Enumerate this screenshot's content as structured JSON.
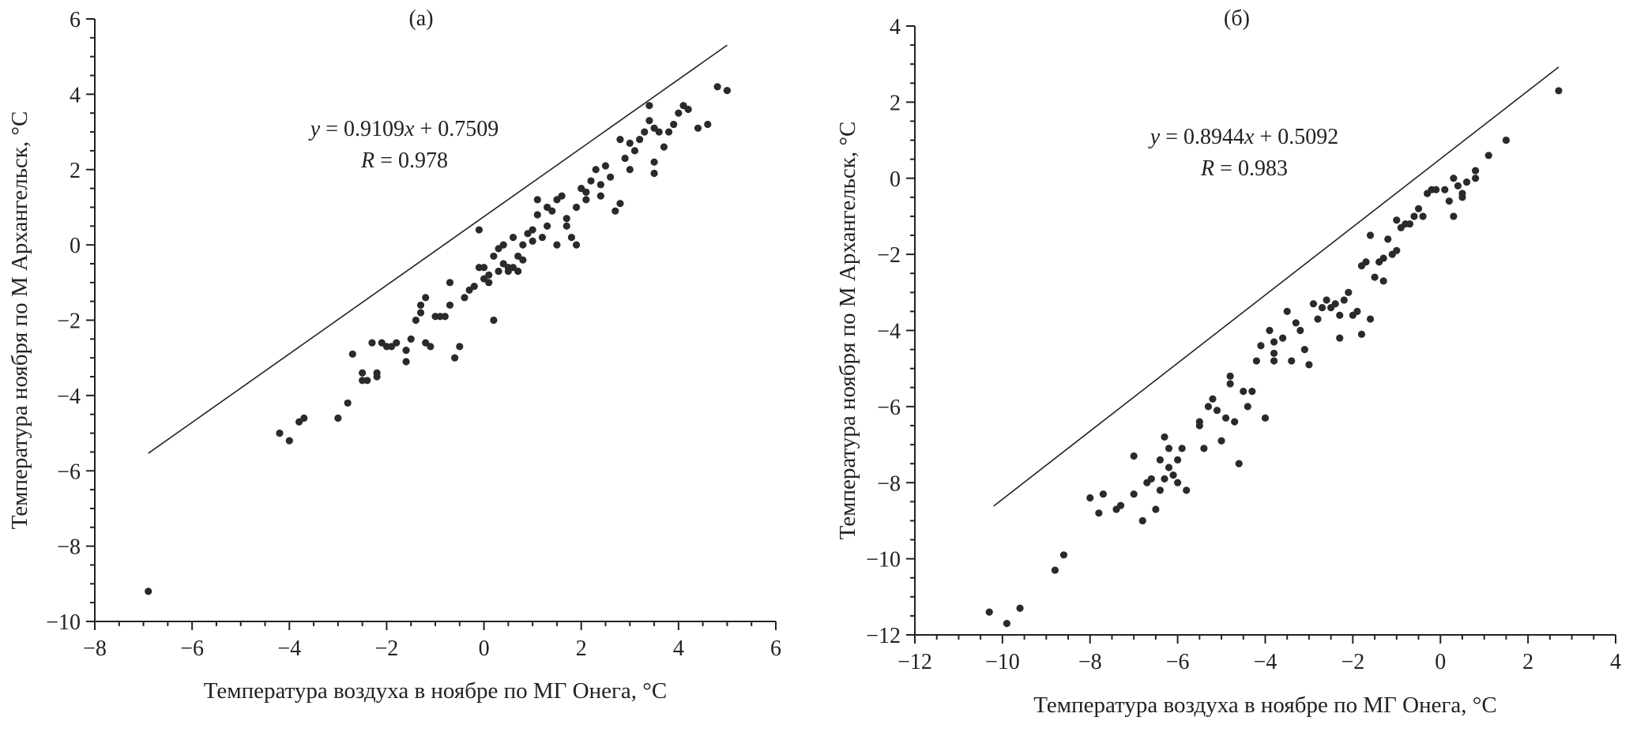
{
  "chart_data": [
    {
      "type": "scatter",
      "panel_label": "(а)",
      "xlabel": "Температура воздуха в ноябре по МГ Онега, °С",
      "ylabel": "Температура ноября по М Архангельск, °С",
      "xlim": [
        -8,
        6
      ],
      "ylim": [
        -10,
        6
      ],
      "xticks": [
        -8,
        -6,
        -4,
        -2,
        0,
        2,
        4,
        6
      ],
      "yticks": [
        -10,
        -8,
        -6,
        -4,
        -2,
        0,
        2,
        4,
        6
      ],
      "grid": false,
      "equation": "y = 0.9109x + 0.7509",
      "r_text": "R = 0.978",
      "regression": {
        "slope": 0.9109,
        "intercept": 0.7509,
        "x_range": [
          -6.9,
          5.0
        ]
      },
      "points": [
        [
          -6.9,
          -9.2
        ],
        [
          -4.2,
          -5.0
        ],
        [
          -4.0,
          -5.2
        ],
        [
          -3.8,
          -4.7
        ],
        [
          -3.7,
          -4.6
        ],
        [
          -3.0,
          -4.6
        ],
        [
          -2.8,
          -4.2
        ],
        [
          -2.7,
          -2.9
        ],
        [
          -2.5,
          -3.4
        ],
        [
          -2.5,
          -3.6
        ],
        [
          -2.4,
          -3.6
        ],
        [
          -2.3,
          -2.6
        ],
        [
          -2.2,
          -3.5
        ],
        [
          -2.2,
          -3.4
        ],
        [
          -2.1,
          -2.6
        ],
        [
          -2.0,
          -2.7
        ],
        [
          -1.9,
          -2.7
        ],
        [
          -1.8,
          -2.6
        ],
        [
          -1.6,
          -2.8
        ],
        [
          -1.6,
          -3.1
        ],
        [
          -1.5,
          -2.5
        ],
        [
          -1.4,
          -2.0
        ],
        [
          -1.3,
          -1.8
        ],
        [
          -1.3,
          -1.6
        ],
        [
          -1.2,
          -1.4
        ],
        [
          -1.2,
          -2.6
        ],
        [
          -1.1,
          -2.7
        ],
        [
          -1.0,
          -1.9
        ],
        [
          -0.9,
          -1.9
        ],
        [
          -0.8,
          -1.9
        ],
        [
          -0.7,
          -1.0
        ],
        [
          -0.7,
          -1.6
        ],
        [
          -0.6,
          -3.0
        ],
        [
          -0.5,
          -2.7
        ],
        [
          -0.4,
          -1.4
        ],
        [
          -0.3,
          -1.2
        ],
        [
          -0.2,
          -1.1
        ],
        [
          -0.1,
          -0.6
        ],
        [
          -0.1,
          0.4
        ],
        [
          0.0,
          -0.9
        ],
        [
          0.0,
          -0.6
        ],
        [
          0.1,
          -1.0
        ],
        [
          0.1,
          -0.8
        ],
        [
          0.2,
          -2.0
        ],
        [
          0.2,
          -0.3
        ],
        [
          0.3,
          -0.7
        ],
        [
          0.3,
          -0.1
        ],
        [
          0.4,
          -0.5
        ],
        [
          0.4,
          0.0
        ],
        [
          0.5,
          -0.6
        ],
        [
          0.5,
          -0.7
        ],
        [
          0.6,
          -0.6
        ],
        [
          0.6,
          0.2
        ],
        [
          0.7,
          -0.3
        ],
        [
          0.7,
          -0.7
        ],
        [
          0.8,
          0.0
        ],
        [
          0.8,
          -0.4
        ],
        [
          0.9,
          0.3
        ],
        [
          1.0,
          0.1
        ],
        [
          1.0,
          0.4
        ],
        [
          1.1,
          0.8
        ],
        [
          1.1,
          1.2
        ],
        [
          1.2,
          0.2
        ],
        [
          1.3,
          0.5
        ],
        [
          1.3,
          1.0
        ],
        [
          1.4,
          0.9
        ],
        [
          1.5,
          1.2
        ],
        [
          1.5,
          0.0
        ],
        [
          1.6,
          1.3
        ],
        [
          1.7,
          0.7
        ],
        [
          1.7,
          0.5
        ],
        [
          1.8,
          0.2
        ],
        [
          1.9,
          1.0
        ],
        [
          1.9,
          0.0
        ],
        [
          2.0,
          1.5
        ],
        [
          2.1,
          1.2
        ],
        [
          2.1,
          1.4
        ],
        [
          2.2,
          1.7
        ],
        [
          2.3,
          2.0
        ],
        [
          2.4,
          1.6
        ],
        [
          2.4,
          1.3
        ],
        [
          2.5,
          2.1
        ],
        [
          2.6,
          1.8
        ],
        [
          2.7,
          0.9
        ],
        [
          2.8,
          1.1
        ],
        [
          2.8,
          2.8
        ],
        [
          2.9,
          2.3
        ],
        [
          3.0,
          2.0
        ],
        [
          3.0,
          2.7
        ],
        [
          3.1,
          2.5
        ],
        [
          3.2,
          2.8
        ],
        [
          3.3,
          3.0
        ],
        [
          3.4,
          3.3
        ],
        [
          3.4,
          3.7
        ],
        [
          3.5,
          2.2
        ],
        [
          3.5,
          1.9
        ],
        [
          3.5,
          3.1
        ],
        [
          3.6,
          3.0
        ],
        [
          3.7,
          2.6
        ],
        [
          3.8,
          3.0
        ],
        [
          3.9,
          3.2
        ],
        [
          4.0,
          3.5
        ],
        [
          4.1,
          3.7
        ],
        [
          4.2,
          3.6
        ],
        [
          4.4,
          3.1
        ],
        [
          4.6,
          3.2
        ],
        [
          4.8,
          4.2
        ],
        [
          5.0,
          4.1
        ]
      ]
    },
    {
      "type": "scatter",
      "panel_label": "(б)",
      "xlabel": "Температура воздуха в ноябре по МГ Онега, °С",
      "ylabel": "Температура ноября по М Архангельск, °С",
      "xlim": [
        -12,
        4
      ],
      "ylim": [
        -12,
        4
      ],
      "xticks": [
        -12,
        -10,
        -8,
        -6,
        -4,
        -2,
        0,
        2,
        4
      ],
      "yticks": [
        -12,
        -10,
        -8,
        -6,
        -4,
        -2,
        0,
        2,
        4
      ],
      "grid": false,
      "equation": "y = 0.8944x + 0.5092",
      "r_text": "R = 0.983",
      "regression": {
        "slope": 0.8944,
        "intercept": 0.5092,
        "x_range": [
          -10.2,
          2.7
        ]
      },
      "points": [
        [
          -10.3,
          -11.4
        ],
        [
          -9.9,
          -11.7
        ],
        [
          -9.6,
          -11.3
        ],
        [
          -8.8,
          -10.3
        ],
        [
          -8.6,
          -9.9
        ],
        [
          -8.0,
          -8.4
        ],
        [
          -7.8,
          -8.8
        ],
        [
          -7.7,
          -8.3
        ],
        [
          -7.4,
          -8.7
        ],
        [
          -7.3,
          -8.6
        ],
        [
          -7.0,
          -8.3
        ],
        [
          -7.0,
          -7.3
        ],
        [
          -6.8,
          -9.0
        ],
        [
          -6.7,
          -8.0
        ],
        [
          -6.6,
          -7.9
        ],
        [
          -6.5,
          -8.7
        ],
        [
          -6.4,
          -7.4
        ],
        [
          -6.4,
          -8.2
        ],
        [
          -6.3,
          -6.8
        ],
        [
          -6.3,
          -7.9
        ],
        [
          -6.2,
          -7.1
        ],
        [
          -6.2,
          -7.6
        ],
        [
          -6.1,
          -7.8
        ],
        [
          -6.0,
          -8.0
        ],
        [
          -6.0,
          -7.4
        ],
        [
          -5.9,
          -7.1
        ],
        [
          -5.8,
          -8.2
        ],
        [
          -5.5,
          -6.4
        ],
        [
          -5.5,
          -6.5
        ],
        [
          -5.4,
          -7.1
        ],
        [
          -5.3,
          -6.0
        ],
        [
          -5.2,
          -5.8
        ],
        [
          -5.1,
          -6.1
        ],
        [
          -5.0,
          -6.9
        ],
        [
          -4.9,
          -6.3
        ],
        [
          -4.8,
          -5.4
        ],
        [
          -4.8,
          -5.2
        ],
        [
          -4.7,
          -6.4
        ],
        [
          -4.6,
          -7.5
        ],
        [
          -4.5,
          -5.6
        ],
        [
          -4.4,
          -6.0
        ],
        [
          -4.3,
          -5.6
        ],
        [
          -4.2,
          -4.8
        ],
        [
          -4.1,
          -4.4
        ],
        [
          -4.0,
          -6.3
        ],
        [
          -3.9,
          -4.0
        ],
        [
          -3.8,
          -4.3
        ],
        [
          -3.8,
          -4.6
        ],
        [
          -3.8,
          -4.8
        ],
        [
          -3.6,
          -4.2
        ],
        [
          -3.5,
          -3.5
        ],
        [
          -3.4,
          -4.8
        ],
        [
          -3.3,
          -3.8
        ],
        [
          -3.2,
          -4.0
        ],
        [
          -3.1,
          -4.5
        ],
        [
          -3.0,
          -4.9
        ],
        [
          -2.9,
          -3.3
        ],
        [
          -2.8,
          -3.7
        ],
        [
          -2.7,
          -3.4
        ],
        [
          -2.6,
          -3.2
        ],
        [
          -2.5,
          -3.4
        ],
        [
          -2.4,
          -3.3
        ],
        [
          -2.3,
          -4.2
        ],
        [
          -2.3,
          -3.6
        ],
        [
          -2.2,
          -3.2
        ],
        [
          -2.1,
          -3.0
        ],
        [
          -2.0,
          -3.6
        ],
        [
          -1.9,
          -3.5
        ],
        [
          -1.8,
          -4.1
        ],
        [
          -1.8,
          -2.3
        ],
        [
          -1.7,
          -2.2
        ],
        [
          -1.6,
          -3.7
        ],
        [
          -1.6,
          -1.5
        ],
        [
          -1.5,
          -2.6
        ],
        [
          -1.4,
          -2.2
        ],
        [
          -1.3,
          -2.7
        ],
        [
          -1.3,
          -2.1
        ],
        [
          -1.2,
          -1.6
        ],
        [
          -1.1,
          -2.0
        ],
        [
          -1.0,
          -1.9
        ],
        [
          -1.0,
          -1.1
        ],
        [
          -0.9,
          -1.3
        ],
        [
          -0.8,
          -1.2
        ],
        [
          -0.7,
          -1.2
        ],
        [
          -0.6,
          -1.0
        ],
        [
          -0.5,
          -0.8
        ],
        [
          -0.4,
          -1.0
        ],
        [
          -0.3,
          -0.4
        ],
        [
          -0.2,
          -0.3
        ],
        [
          -0.1,
          -0.3
        ],
        [
          0.1,
          -0.3
        ],
        [
          0.2,
          -0.6
        ],
        [
          0.3,
          0.0
        ],
        [
          0.3,
          -1.0
        ],
        [
          0.4,
          -0.2
        ],
        [
          0.5,
          -0.4
        ],
        [
          0.5,
          -0.5
        ],
        [
          0.6,
          -0.1
        ],
        [
          0.8,
          0.0
        ],
        [
          0.8,
          0.2
        ],
        [
          1.1,
          0.6
        ],
        [
          1.5,
          1.0
        ],
        [
          2.7,
          2.3
        ]
      ]
    }
  ]
}
